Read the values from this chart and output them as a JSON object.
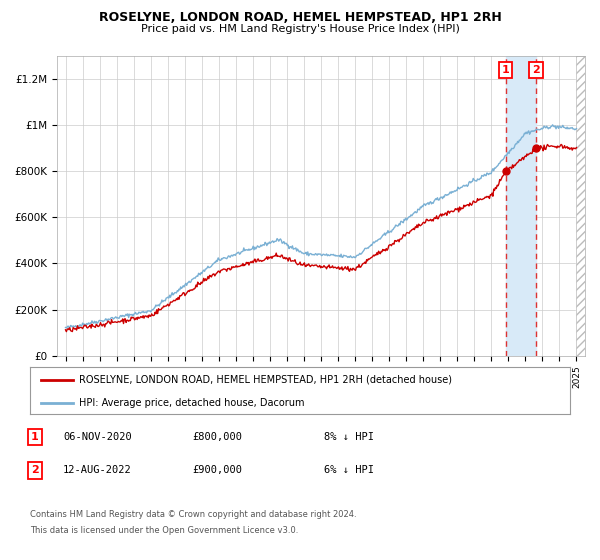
{
  "title": "ROSELYNE, LONDON ROAD, HEMEL HEMPSTEAD, HP1 2RH",
  "subtitle": "Price paid vs. HM Land Registry's House Price Index (HPI)",
  "legend_line1": "ROSELYNE, LONDON ROAD, HEMEL HEMPSTEAD, HP1 2RH (detached house)",
  "legend_line2": "HPI: Average price, detached house, Dacorum",
  "footer1": "Contains HM Land Registry data © Crown copyright and database right 2024.",
  "footer2": "This data is licensed under the Open Government Licence v3.0.",
  "sale1_date": "06-NOV-2020",
  "sale1_price": "£800,000",
  "sale1_pct": "8% ↓ HPI",
  "sale2_date": "12-AUG-2022",
  "sale2_price": "£900,000",
  "sale2_pct": "6% ↓ HPI",
  "sale1_year": 2020.85,
  "sale2_year": 2022.62,
  "sale1_price_val": 800000,
  "sale2_price_val": 900000,
  "red_color": "#cc0000",
  "blue_color": "#7ab0d4",
  "dashed_color": "#dd3333",
  "shade_color": "#d8eaf8",
  "ylim": [
    0,
    1300000
  ],
  "yticks": [
    0,
    200000,
    400000,
    600000,
    800000,
    1000000,
    1200000
  ],
  "ytick_labels": [
    "£0",
    "£200K",
    "£400K",
    "£600K",
    "£800K",
    "£1M",
    "£1.2M"
  ],
  "xmin": 1994.5,
  "xmax": 2025.5,
  "background_color": "#ffffff",
  "grid_color": "#cccccc"
}
